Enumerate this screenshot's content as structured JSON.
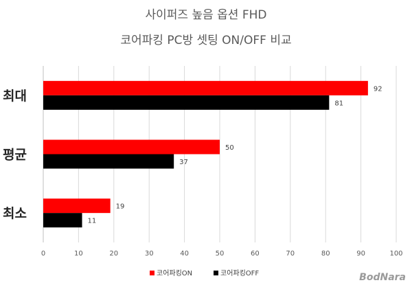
{
  "chart_data": {
    "type": "bar",
    "orientation": "horizontal",
    "title": "사이퍼즈 높음 옵션 FHD",
    "subtitle": "코어파킹 PC방 셋팅 ON/OFF 비교",
    "categories": [
      "최대",
      "평균",
      "최소"
    ],
    "series": [
      {
        "name": "코어파킹ON",
        "color": "#ff0000",
        "values": [
          92,
          50,
          19
        ]
      },
      {
        "name": "코어파킹OFF",
        "color": "#000000",
        "values": [
          81,
          37,
          11
        ]
      }
    ],
    "xlim": [
      0,
      100
    ],
    "xticks": [
      0,
      10,
      20,
      30,
      40,
      50,
      60,
      70,
      80,
      90,
      100
    ],
    "grid": true,
    "legend": "bottom-center",
    "data_labels": true
  },
  "watermark": "BodNara"
}
